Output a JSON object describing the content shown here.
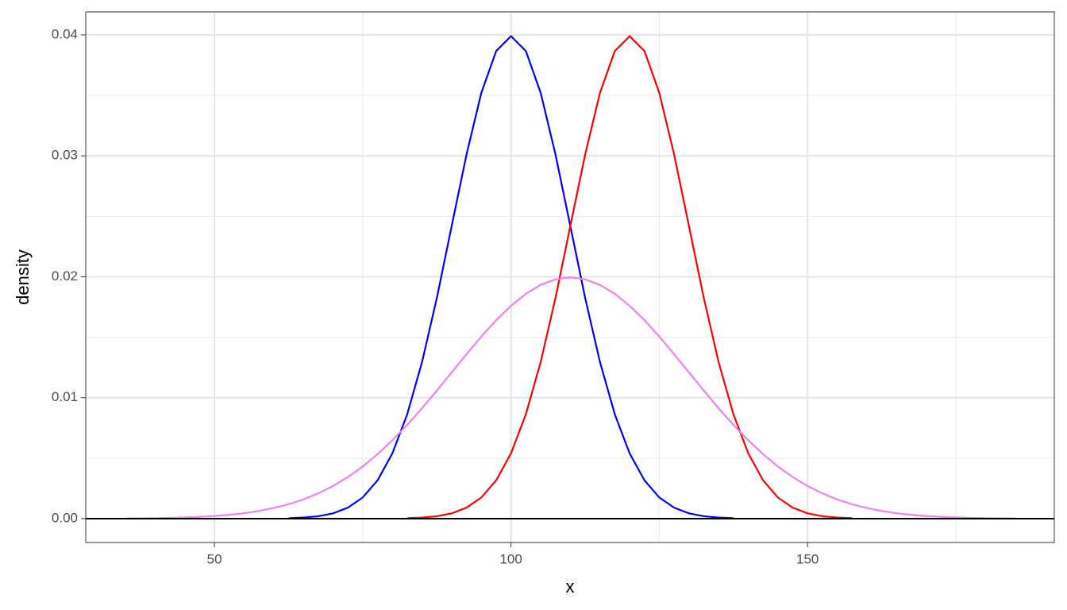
{
  "chart_data": {
    "type": "line",
    "xlabel": "x",
    "ylabel": "density",
    "x": [
      35,
      37.5,
      40,
      42.5,
      45,
      47.5,
      50,
      52.5,
      55,
      57.5,
      60,
      62.5,
      65,
      67.5,
      70,
      72.5,
      75,
      77.5,
      80,
      82.5,
      85,
      87.5,
      90,
      92.5,
      95,
      97.5,
      100,
      102.5,
      105,
      107.5,
      110,
      112.5,
      115,
      117.5,
      120,
      122.5,
      125,
      127.5,
      130,
      132.5,
      135,
      137.5,
      140,
      142.5,
      145,
      147.5,
      150,
      152.5,
      155,
      157.5,
      160,
      162.5,
      165,
      167.5,
      170,
      172.5,
      175,
      177.5,
      180,
      182.5,
      185
    ],
    "series": [
      {
        "color": "#0000ff",
        "values": [
          null,
          null,
          null,
          null,
          null,
          null,
          null,
          null,
          null,
          null,
          null,
          4e-05,
          9e-05,
          0.0002,
          0.00044,
          0.00091,
          0.00175,
          0.00317,
          0.0054,
          0.00863,
          0.01295,
          0.01826,
          0.0242,
          0.03011,
          0.03521,
          0.03867,
          0.03989,
          0.03867,
          0.03521,
          0.03011,
          0.0242,
          0.01826,
          0.01295,
          0.00863,
          0.0054,
          0.00317,
          0.00175,
          0.00091,
          0.00044,
          0.0002,
          9e-05,
          4e-05,
          null,
          null,
          null,
          null,
          null,
          null,
          null,
          null,
          null,
          null,
          null,
          null,
          null,
          null,
          null,
          null,
          null,
          null,
          null
        ]
      },
      {
        "color": "#ff0000",
        "values": [
          null,
          null,
          null,
          null,
          null,
          null,
          null,
          null,
          null,
          null,
          null,
          null,
          null,
          null,
          null,
          null,
          null,
          null,
          null,
          4e-05,
          9e-05,
          0.0002,
          0.00044,
          0.00091,
          0.00175,
          0.00317,
          0.0054,
          0.00863,
          0.01295,
          0.01826,
          0.0242,
          0.03011,
          0.03521,
          0.03867,
          0.03989,
          0.03867,
          0.03521,
          0.03011,
          0.0242,
          0.01826,
          0.01295,
          0.00863,
          0.0054,
          0.00317,
          0.00175,
          0.00091,
          0.00044,
          0.0002,
          9e-05,
          4e-05,
          null,
          null,
          null,
          null,
          null,
          null,
          null,
          null,
          null,
          null,
          null
        ]
      },
      {
        "color": "#ee82ee",
        "values": [
          2e-05,
          3e-05,
          4e-05,
          7e-05,
          0.0001,
          0.00015,
          0.00022,
          0.00032,
          0.00045,
          0.00064,
          0.00088,
          0.00119,
          0.00159,
          0.00209,
          0.0027,
          0.00344,
          0.00431,
          0.00533,
          0.00648,
          0.00775,
          0.00913,
          0.01059,
          0.0121,
          0.0136,
          0.01506,
          0.01641,
          0.0176,
          0.01859,
          0.01933,
          0.01979,
          0.01995,
          0.01979,
          0.01933,
          0.01859,
          0.0176,
          0.01641,
          0.01506,
          0.0136,
          0.0121,
          0.01059,
          0.00913,
          0.00775,
          0.00648,
          0.00533,
          0.00431,
          0.00344,
          0.0027,
          0.00209,
          0.00159,
          0.00119,
          0.00088,
          0.00064,
          0.00045,
          0.00032,
          0.00022,
          0.00015,
          0.0001,
          7e-05,
          4e-05,
          3e-05,
          2e-05
        ]
      }
    ],
    "xlim": [
      28.3,
      191.6
    ],
    "xticks": [
      50,
      100,
      150
    ],
    "x_minor_ticks": [
      75,
      125,
      175
    ],
    "ylim": [
      -0.00197,
      0.0419
    ],
    "yticks": [
      {
        "value": 0,
        "label": "0.00"
      },
      0.01,
      0.02,
      0.03,
      0.04
    ],
    "y_minor_ticks": [
      0.005,
      0.015,
      0.025,
      0.035
    ],
    "hline": 0,
    "hline_color": "#000000",
    "grid": true
  }
}
